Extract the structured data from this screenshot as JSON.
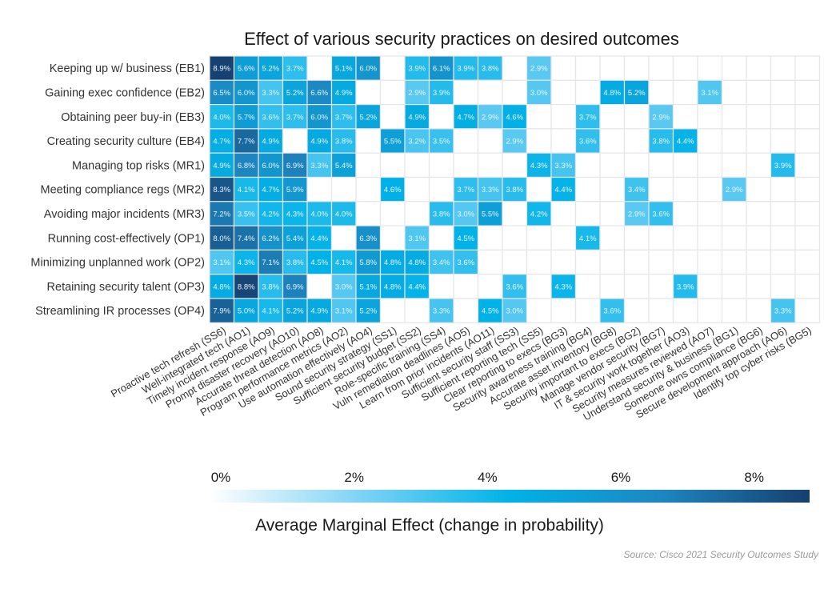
{
  "chart_data": {
    "type": "heatmap",
    "title": "Effect of various security practices on desired outcomes",
    "source": "Source: Cisco 2021 Security Outcomes Study",
    "rows": [
      "Keeping up w/ business (EB1)",
      "Gaining exec confidence (EB2)",
      "Obtaining peer buy-in (EB3)",
      "Creating security culture (EB4)",
      "Managing top risks (MR1)",
      "Meeting compliance regs (MR2)",
      "Avoiding major incidents (MR3)",
      "Running cost-effectively (OP1)",
      "Minimizing unplanned work (OP2)",
      "Retaining security talent (OP3)",
      "Streamlining IR processes (OP4)"
    ],
    "columns": [
      "Proactive tech refresh (SS6)",
      "Well-integrated tech (AO1)",
      "Timely incident response (AO9)",
      "Prompt disaster recovery (AO10)",
      "Accurate threat detection (AO8)",
      "Program performance metrics (AO2)",
      "Use automation effectively (AO4)",
      "Sound security strategy (SS1)",
      "Sufficient security budget (SS2)",
      "Role-specific training (SS4)",
      "Vuln remediation deadlines (AO5)",
      "Learn from prior incidents (AO11)",
      "Sufficient security staff (SS3)",
      "Sufficient reporting tech (SS5)",
      "Clear reporting to execs (BG3)",
      "Security awareness training (BG4)",
      "Accurate asset inventory (BG8)",
      "Security important to execs (BG2)",
      "Manage vendor security (BG7)",
      "IT & security work together (AO3)",
      "Security measures reviewed (AO7)",
      "Understand security & business (BG1)",
      "Someone owns compliance (BG6)",
      "Secure development approach (AO6)",
      "Identify top cyber risks (BG5)"
    ],
    "cells": [
      [
        8.9,
        5.6,
        5.2,
        3.7,
        null,
        5.1,
        6.0,
        null,
        3.9,
        6.1,
        3.9,
        3.8,
        null,
        2.9,
        null,
        null,
        null,
        null,
        null,
        null,
        null,
        null,
        null,
        null,
        null
      ],
      [
        6.5,
        6.0,
        3.3,
        5.2,
        6.6,
        4.9,
        null,
        null,
        2.9,
        3.9,
        null,
        null,
        null,
        3.0,
        null,
        null,
        4.8,
        5.2,
        null,
        null,
        3.1,
        null,
        null,
        null,
        null
      ],
      [
        4.0,
        5.7,
        3.6,
        3.7,
        6.0,
        3.7,
        5.2,
        null,
        4.9,
        null,
        4.7,
        2.9,
        4.6,
        null,
        null,
        3.7,
        null,
        null,
        2.9,
        null,
        null,
        null,
        null,
        null,
        null
      ],
      [
        4.7,
        7.7,
        4.9,
        null,
        4.9,
        3.8,
        null,
        5.5,
        3.2,
        3.5,
        null,
        null,
        2.9,
        null,
        null,
        3.6,
        null,
        null,
        3.8,
        4.4,
        null,
        null,
        null,
        null,
        null
      ],
      [
        4.9,
        6.8,
        6.0,
        6.9,
        3.3,
        5.4,
        null,
        null,
        null,
        null,
        null,
        null,
        null,
        4.3,
        3.3,
        null,
        null,
        null,
        null,
        null,
        null,
        null,
        null,
        3.9,
        null
      ],
      [
        8.3,
        4.1,
        4.7,
        5.9,
        null,
        null,
        null,
        4.6,
        null,
        null,
        3.7,
        3.3,
        3.8,
        null,
        4.4,
        null,
        null,
        3.4,
        null,
        null,
        null,
        2.9,
        null,
        null,
        null
      ],
      [
        7.2,
        3.5,
        4.2,
        4.3,
        4.0,
        4.0,
        null,
        null,
        null,
        3.8,
        3.0,
        5.5,
        null,
        4.2,
        null,
        null,
        null,
        2.9,
        3.6,
        null,
        null,
        null,
        null,
        null,
        null
      ],
      [
        8.0,
        7.4,
        6.2,
        5.4,
        4.4,
        null,
        6.3,
        null,
        3.1,
        null,
        4.5,
        null,
        null,
        null,
        null,
        4.1,
        null,
        null,
        null,
        null,
        null,
        null,
        null,
        null,
        null
      ],
      [
        3.1,
        4.3,
        7.1,
        3.8,
        4.5,
        4.1,
        5.8,
        4.8,
        4.8,
        3.4,
        3.6,
        null,
        null,
        null,
        null,
        null,
        null,
        null,
        null,
        null,
        null,
        null,
        null,
        null,
        null
      ],
      [
        4.8,
        8.8,
        3.8,
        6.9,
        null,
        3.0,
        5.1,
        4.8,
        4.4,
        null,
        null,
        null,
        3.6,
        null,
        4.3,
        null,
        null,
        null,
        null,
        3.9,
        null,
        null,
        null,
        null,
        null
      ],
      [
        7.9,
        5.0,
        4.1,
        5.2,
        4.9,
        3.1,
        5.2,
        null,
        null,
        3.3,
        null,
        4.5,
        3.0,
        null,
        null,
        null,
        3.6,
        null,
        null,
        null,
        null,
        null,
        null,
        3.3,
        null
      ]
    ],
    "value_suffix": "%",
    "colorbar": {
      "label": "Average Marginal Effect (change in probability)",
      "range": [
        0,
        9
      ],
      "ticks": [
        0,
        2,
        4,
        6,
        8
      ],
      "tick_labels": [
        "0%",
        "2%",
        "4%",
        "6%",
        "8%"
      ],
      "colors": [
        "#ffffff",
        "#7fd3f5",
        "#00b2e8",
        "#1d87c1",
        "#163f6e"
      ]
    },
    "empty_cell_color": "#ffffff",
    "grid_color": "#e6e6e6"
  }
}
